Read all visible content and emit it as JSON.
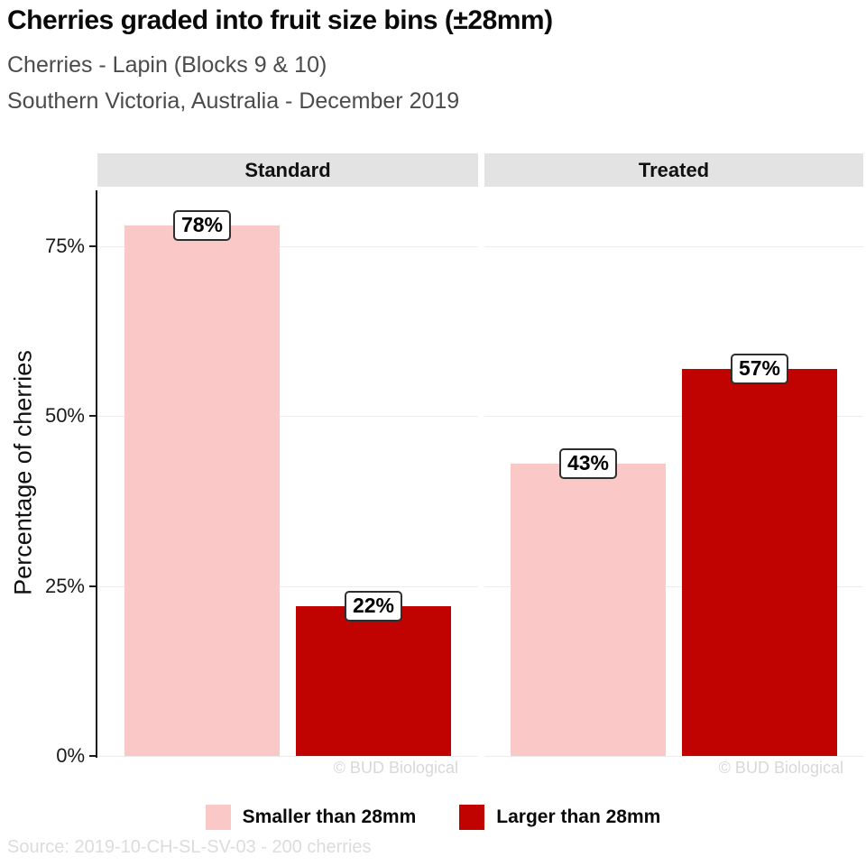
{
  "header": {
    "title": "Cherries graded into fruit size bins (±28mm)",
    "subtitle_line1": "Cherries - Lapin (Blocks 9 & 10)",
    "subtitle_line2": "Southern Victoria, Australia - December 2019"
  },
  "axis": {
    "y_title": "Percentage of cherries",
    "ytick_values": [
      0,
      25,
      50,
      75
    ],
    "ytick_suffix": "%"
  },
  "watermark": "© BUD Biological",
  "footer": {
    "source": "Source: 2019-10-CH-SL-SV-03 - 200 cherries"
  },
  "colors": {
    "smaller": "#fbc8c8",
    "larger": "#c00201",
    "strip_bg": "#e3e3e3",
    "gridline": "#ededed",
    "axis": "#1a1a1a",
    "subtitle_text": "#4b4b4b",
    "watermark_text": "#d8d8d8",
    "source_text": "#dcdcdc"
  },
  "legend": {
    "items": [
      {
        "label": "Smaller than 28mm",
        "color": "#fbc8c8"
      },
      {
        "label": "Larger than 28mm",
        "color": "#c00201"
      }
    ]
  },
  "chart_data": {
    "type": "bar",
    "title": "Cherries graded into fruit size bins (±28mm)",
    "facets": [
      "Standard",
      "Treated"
    ],
    "categories": [
      "Standard",
      "Treated"
    ],
    "series": [
      {
        "name": "Smaller than 28mm",
        "color": "#fbc8c8",
        "values": [
          78,
          43
        ]
      },
      {
        "name": "Larger than 28mm",
        "color": "#c00201",
        "values": [
          22,
          57
        ]
      }
    ],
    "label_format": "{value}%",
    "xlabel": "",
    "ylabel": "Percentage of cherries",
    "ylim": [
      0,
      83
    ],
    "yticks": [
      0,
      25,
      50,
      75
    ],
    "grid": "major-horizontal",
    "legend_position": "bottom",
    "total_sample": "200 cherries"
  }
}
